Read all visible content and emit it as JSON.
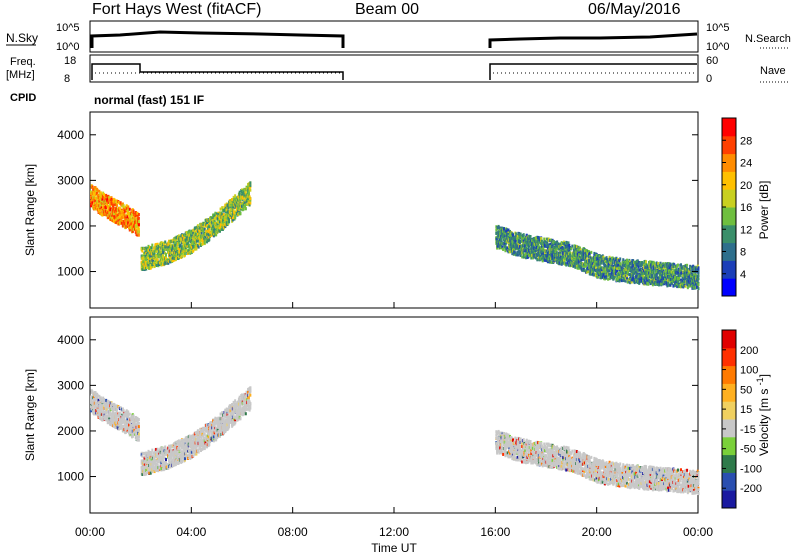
{
  "header": {
    "station": "Fort Hays West (fitACF)",
    "beam": "Beam 00",
    "date": "06/May/2016"
  },
  "status_panels": {
    "nsky_label": "N.Sky",
    "nsky_ticks": [
      "10^5",
      "10^0"
    ],
    "nsearch_label": "N.Search",
    "nsearch_ticks": [
      "10^5",
      "10^0"
    ],
    "freq_label_1": "Freq.",
    "freq_label_2": "[MHz]",
    "freq_ticks": [
      "18",
      "8"
    ],
    "nave_label": "Nave",
    "nave_ticks": [
      "60",
      "0"
    ],
    "cpid_label": "CPID",
    "cpid_value": "normal (fast) 151 IF"
  },
  "chart_data": [
    {
      "type": "heatmap",
      "title": "",
      "xlabel": "Time UT",
      "ylabel": "Slant Range [km]",
      "x_ticks": [
        "00:00",
        "04:00",
        "08:00",
        "12:00",
        "16:00",
        "20:00",
        "00:00"
      ],
      "y_ticks": [
        "1000",
        "2000",
        "3000",
        "4000"
      ],
      "xlim": [
        0,
        24
      ],
      "ylim": [
        200,
        4500
      ],
      "data_gap_hours": [
        10,
        16
      ],
      "colorbar": {
        "label": "Power [dB]",
        "ticks": [
          "4",
          "8",
          "12",
          "16",
          "20",
          "24",
          "28"
        ],
        "range": [
          0,
          30
        ],
        "colors": [
          "#0000ff",
          "#1c3fb8",
          "#2e6f8c",
          "#3a8f6a",
          "#6fbf3f",
          "#c8d020",
          "#ffc000",
          "#ff8c00",
          "#ff4000",
          "#ff0000"
        ]
      },
      "features": [
        {
          "name": "echo-band-early",
          "t": [
            0,
            0.5,
            1,
            1.5,
            1.9
          ],
          "range_km": [
            2700,
            2500,
            2350,
            2200,
            2050
          ],
          "dB": 22
        },
        {
          "name": "echo-band-rising",
          "t": [
            2,
            3,
            4,
            5,
            6,
            6.3
          ],
          "range_km": [
            1300,
            1450,
            1700,
            2100,
            2600,
            2750
          ],
          "dB": 14
        },
        {
          "name": "echo-band-evening",
          "t": [
            16,
            17,
            18,
            19,
            20,
            21,
            22,
            23,
            24
          ],
          "range_km": [
            1800,
            1600,
            1500,
            1400,
            1150,
            1050,
            1000,
            950,
            900
          ],
          "dB": 10
        }
      ]
    },
    {
      "type": "heatmap",
      "title": "",
      "xlabel": "Time UT",
      "ylabel": "Slant Range [km]",
      "x_ticks": [
        "00:00",
        "04:00",
        "08:00",
        "12:00",
        "16:00",
        "20:00",
        "00:00"
      ],
      "y_ticks": [
        "1000",
        "2000",
        "3000",
        "4000"
      ],
      "xlim": [
        0,
        24
      ],
      "ylim": [
        200,
        4500
      ],
      "colorbar": {
        "label": "Velocity [m s^-1]",
        "ticks": [
          "200",
          "100",
          "50",
          "15",
          "-15",
          "-50",
          "-100",
          "-200"
        ],
        "range": [
          -250,
          250
        ],
        "colors": [
          "#1a1aa0",
          "#2a4fb0",
          "#2e7a4a",
          "#7ad03a",
          "#c8c8c8",
          "#f0d060",
          "#ffb020",
          "#ff7a00",
          "#ff3000",
          "#e00000"
        ]
      }
    }
  ]
}
